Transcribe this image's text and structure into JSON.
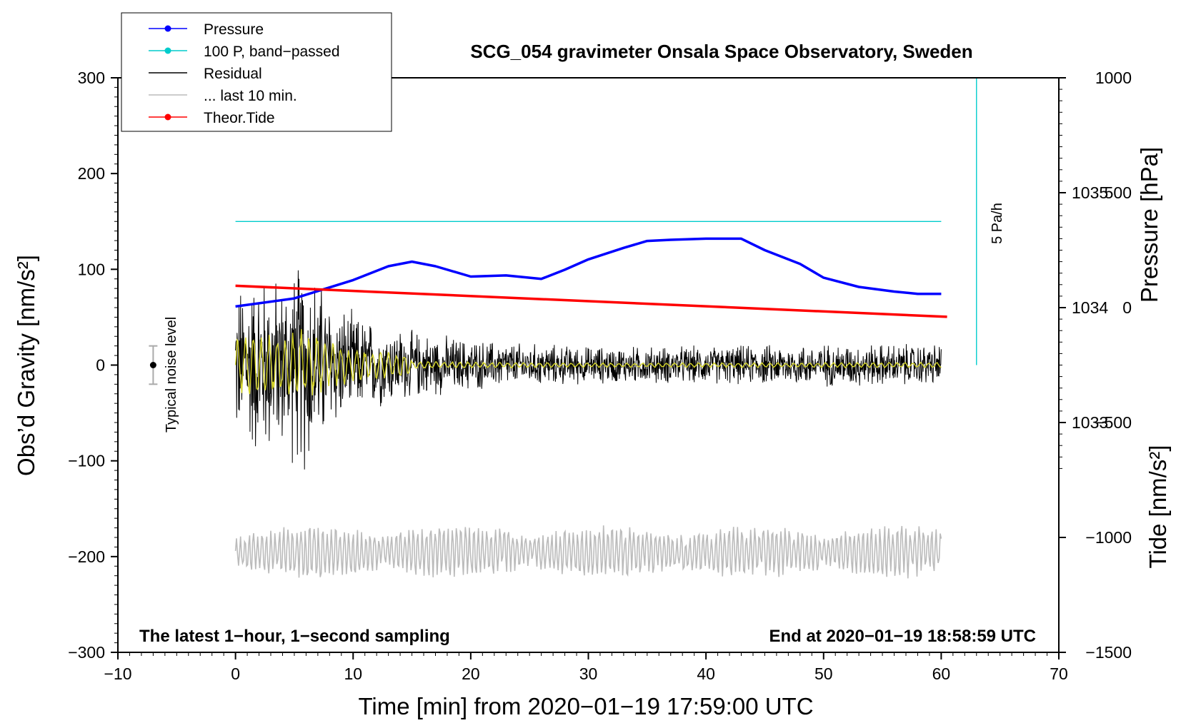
{
  "chart_data": {
    "type": "line",
    "title": "SCG_054 gravimeter Onsala Space Observatory, Sweden",
    "xlabel": "Time [min] from 2020−01−19 17:59:00 UTC",
    "ylabel_left": "Obs’d Gravity [nm/s²]",
    "ylabel_right_top": "Pressure [hPa]",
    "ylabel_right_bottom": "Tide [nm/s²]",
    "xlim": [
      -10,
      70
    ],
    "ylim_left": [
      -300,
      300
    ],
    "ylim_pressure": [
      1031.0,
      1036.0
    ],
    "ylim_tide": [
      -1500,
      1000
    ],
    "x_ticks": [
      "−10",
      "0",
      "10",
      "20",
      "30",
      "40",
      "50",
      "60",
      "70"
    ],
    "x_tick_values": [
      -10,
      0,
      10,
      20,
      30,
      40,
      50,
      60,
      70
    ],
    "left_ticks": [
      "−300",
      "−200",
      "−100",
      "0",
      "100",
      "200",
      "300"
    ],
    "left_tick_values": [
      -300,
      -200,
      -100,
      0,
      100,
      200,
      300
    ],
    "pressure_ticks": [
      "1033",
      "1034",
      "1035"
    ],
    "pressure_tick_values": [
      1033,
      1034,
      1035
    ],
    "tide_ticks": [
      "−1500",
      "−1000",
      "−500",
      "0",
      "500",
      "1000"
    ],
    "tide_tick_values": [
      -1500,
      -1000,
      -500,
      0,
      500,
      1000
    ],
    "legend": [
      {
        "label": "Pressure",
        "color": "#0000ff",
        "marker": true
      },
      {
        "label": "100 P, band−passed",
        "color": "#00cccc",
        "marker": true
      },
      {
        "label": "Residual",
        "color": "#000000",
        "marker": false
      },
      {
        "label": "... last 10 min.",
        "color": "#bbbbbb",
        "marker": false
      },
      {
        "label": "Theor.Tide",
        "color": "#ff0000",
        "marker": true
      }
    ],
    "series": [
      {
        "name": "Pressure",
        "axis": "pressure",
        "color": "#0000ff",
        "x": [
          0,
          5,
          10,
          13,
          15,
          17,
          20,
          23,
          26,
          28,
          30,
          33,
          35,
          37,
          40,
          43,
          45,
          48,
          50,
          53,
          56,
          58,
          60
        ],
        "y": [
          1034.01,
          1034.08,
          1034.24,
          1034.36,
          1034.4,
          1034.36,
          1034.27,
          1034.28,
          1034.25,
          1034.33,
          1034.42,
          1034.52,
          1034.58,
          1034.59,
          1034.6,
          1034.6,
          1034.5,
          1034.38,
          1034.26,
          1034.18,
          1034.14,
          1034.12,
          1034.12
        ]
      },
      {
        "name": "100 P, band−passed",
        "axis": "left",
        "color": "#00cccc",
        "x": [
          0,
          60
        ],
        "y": [
          150,
          150
        ]
      },
      {
        "name": "Theor.Tide",
        "axis": "tide",
        "color": "#ff0000",
        "x": [
          0,
          60.5
        ],
        "y": [
          95,
          -40
        ]
      }
    ],
    "residual_envelope": {
      "x": [
        0,
        2,
        4,
        6,
        8,
        10,
        12,
        15,
        20,
        25,
        30,
        40,
        50,
        60
      ],
      "amplitude": [
        90,
        110,
        100,
        130,
        80,
        60,
        50,
        40,
        30,
        25,
        22,
        22,
        25,
        25
      ]
    },
    "pressure_rate_bar": {
      "x": 63,
      "label": "5 Pa/h",
      "y_from": 0,
      "y_to": 300
    },
    "noise_level": {
      "x": -7,
      "label": "Typical noise level",
      "center": 0,
      "half_range": 20
    },
    "annotation_left": "The latest 1−hour, 1−second sampling",
    "annotation_right": "End at 2020−01−19 18:58:59 UTC"
  }
}
